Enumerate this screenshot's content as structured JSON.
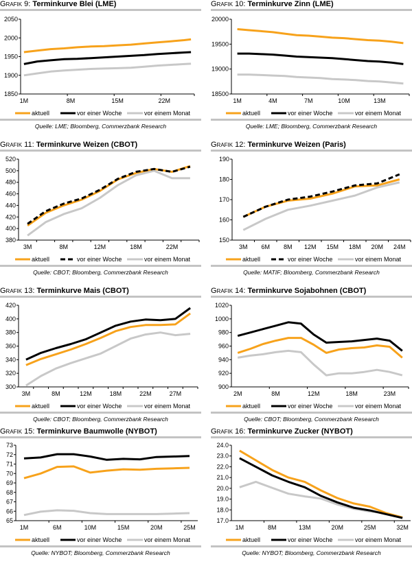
{
  "legend": [
    "aktuell",
    "vor einer Woche",
    "vor einem Monat"
  ],
  "colors": {
    "aktuell": "#f7a21b",
    "woche": "#000000",
    "monat": "#c8c8c8",
    "rule": "#c3c3c3"
  },
  "chart_data": [
    {
      "type": "line",
      "prefix": "Grafik 9:",
      "title": "Terminkurve Blei (LME)",
      "source": "Quelle: LME; Bloomberg, Commerzbank Research",
      "xlim": [
        0.5,
        26.5
      ],
      "x": [
        1,
        3,
        5,
        7,
        9,
        11,
        13,
        15,
        17,
        19,
        21,
        23,
        25,
        26
      ],
      "xticks": [
        {
          "at": 1,
          "label": "1M"
        },
        {
          "at": 8,
          "label": "8M"
        },
        {
          "at": 15,
          "label": "15M"
        },
        {
          "at": 22,
          "label": "22M"
        }
      ],
      "xtick_marks": [
        7.5,
        14.5,
        21.5,
        26.5
      ],
      "ylim": [
        1850,
        2050
      ],
      "yticks": [
        "1850",
        "1900",
        "1950",
        "2000",
        "2050"
      ],
      "series": [
        {
          "name": "aktuell",
          "style": "solid",
          "values": [
            1962,
            1966,
            1970,
            1972,
            1975,
            1977,
            1978,
            1980,
            1982,
            1985,
            1988,
            1991,
            1994,
            1996
          ]
        },
        {
          "name": "vor einer Woche",
          "style": "solid",
          "values": [
            1930,
            1937,
            1940,
            1943,
            1944,
            1946,
            1948,
            1950,
            1952,
            1954,
            1957,
            1959,
            1961,
            1962
          ]
        },
        {
          "name": "vor einem Monat",
          "style": "solid",
          "values": [
            1900,
            1905,
            1910,
            1913,
            1915,
            1917,
            1918,
            1919,
            1920,
            1923,
            1926,
            1928,
            1930,
            1931
          ]
        }
      ]
    },
    {
      "type": "line",
      "prefix": "Grafik 10:",
      "title": "Terminkurve Zinn (LME)",
      "source": "Quelle: LME; Bloomberg, Commerzbank Research",
      "xlim": [
        0.5,
        15.5
      ],
      "x": [
        1,
        2,
        3,
        4,
        5,
        6,
        7,
        8,
        9,
        10,
        11,
        12,
        13,
        14,
        15
      ],
      "xticks": [
        {
          "at": 1,
          "label": "1M"
        },
        {
          "at": 4,
          "label": "4M"
        },
        {
          "at": 7,
          "label": "7M"
        },
        {
          "at": 10,
          "label": "10M"
        },
        {
          "at": 13,
          "label": "13M"
        }
      ],
      "xtick_marks": [
        3.5,
        6.5,
        9.5,
        12.5,
        15.5
      ],
      "ylim": [
        18500,
        20000
      ],
      "yticks": [
        "18500",
        "19000",
        "19500",
        "20000"
      ],
      "series": [
        {
          "name": "aktuell",
          "style": "solid",
          "values": [
            19800,
            19780,
            19760,
            19740,
            19710,
            19680,
            19670,
            19650,
            19630,
            19620,
            19600,
            19580,
            19570,
            19550,
            19520
          ]
        },
        {
          "name": "vor einer Woche",
          "style": "solid",
          "values": [
            19310,
            19310,
            19300,
            19290,
            19270,
            19250,
            19240,
            19230,
            19220,
            19200,
            19180,
            19160,
            19150,
            19130,
            19100
          ]
        },
        {
          "name": "vor einem Monat",
          "style": "solid",
          "values": [
            18890,
            18890,
            18880,
            18870,
            18860,
            18840,
            18830,
            18820,
            18800,
            18790,
            18780,
            18760,
            18750,
            18730,
            18710
          ]
        }
      ]
    },
    {
      "type": "line",
      "prefix": "Grafik 11:",
      "title": "Terminkurve Weizen (CBOT)",
      "source": "Quelle: CBOT; Bloomberg, Commerzbank Research",
      "xlim": [
        -0.5,
        9.5
      ],
      "x": [
        0,
        1,
        2,
        3,
        4,
        5,
        6,
        7,
        8,
        9
      ],
      "xticks": [
        {
          "at": 0,
          "label": "3M"
        },
        {
          "at": 2,
          "label": "8M"
        },
        {
          "at": 4,
          "label": "12M"
        },
        {
          "at": 6,
          "label": "18M"
        },
        {
          "at": 8,
          "label": "22M"
        }
      ],
      "xtick_marks": [
        0.5,
        1.5,
        2.5,
        3.5,
        4.5,
        5.5,
        6.5,
        7.5,
        8.5,
        9.5
      ],
      "ylim": [
        380,
        520
      ],
      "yticks": [
        "380",
        "400",
        "420",
        "440",
        "460",
        "480",
        "500",
        "520"
      ],
      "series": [
        {
          "name": "aktuell",
          "style": "solid",
          "values": [
            405,
            427,
            440,
            450,
            465,
            485,
            496,
            503,
            498,
            508
          ]
        },
        {
          "name": "vor einer Woche",
          "style": "dashed",
          "values": [
            408,
            430,
            443,
            452,
            467,
            486,
            498,
            503,
            498,
            507
          ]
        },
        {
          "name": "vor einem Monat",
          "style": "solid",
          "values": [
            388,
            411,
            425,
            435,
            453,
            475,
            492,
            500,
            487,
            487
          ]
        }
      ]
    },
    {
      "type": "line",
      "prefix": "Grafik 12:",
      "title": "Terminkurve Weizen (Paris)",
      "source": "Quelle: MATIF; Bloomberg, Commerzbank Research",
      "xlim": [
        -0.5,
        7.5
      ],
      "x": [
        0,
        1,
        2,
        3,
        4,
        5,
        6,
        7
      ],
      "xticks": [
        {
          "at": 0,
          "label": "3M"
        },
        {
          "at": 1,
          "label": "6M"
        },
        {
          "at": 2,
          "label": "8M"
        },
        {
          "at": 3,
          "label": "12M"
        },
        {
          "at": 4,
          "label": "15M"
        },
        {
          "at": 5,
          "label": "18M"
        },
        {
          "at": 6,
          "label": "20M"
        },
        {
          "at": 7,
          "label": "24M"
        }
      ],
      "xtick_marks": [
        0.5,
        1.5,
        2.5,
        3.5,
        4.5,
        5.5,
        6.5,
        7.5
      ],
      "ylim": [
        150,
        190
      ],
      "yticks": [
        "150",
        "160",
        "170",
        "180",
        "190"
      ],
      "series": [
        {
          "name": "aktuell",
          "style": "solid",
          "values": [
            161.5,
            166.5,
            169.5,
            170.5,
            173,
            176.5,
            177,
            180
          ]
        },
        {
          "name": "vor einer Woche",
          "style": "dashed",
          "values": [
            161.5,
            166.5,
            170,
            171.5,
            174,
            177,
            178,
            182.5
          ]
        },
        {
          "name": "vor einem Monat",
          "style": "solid",
          "values": [
            155,
            160.5,
            165,
            167,
            169.5,
            172,
            176,
            178.5
          ]
        }
      ]
    },
    {
      "type": "line",
      "prefix": "Grafik 13:",
      "title": "Terminkurve Mais (CBOT)",
      "source": "Quelle: CBOT; Bloomberg, Commerzbank Research",
      "xlim": [
        -0.5,
        11.5
      ],
      "x": [
        0,
        1,
        2,
        3,
        4,
        5,
        6,
        7,
        8,
        9,
        10,
        11
      ],
      "xticks": [
        {
          "at": 0,
          "label": "3M"
        },
        {
          "at": 2,
          "label": "8M"
        },
        {
          "at": 4,
          "label": "12M"
        },
        {
          "at": 6,
          "label": "18M"
        },
        {
          "at": 8,
          "label": "22M"
        },
        {
          "at": 10,
          "label": "27M"
        }
      ],
      "xtick_marks": [
        0.5,
        1.5,
        2.5,
        3.5,
        4.5,
        5.5,
        6.5,
        7.5,
        8.5,
        9.5,
        10.5,
        11.5
      ],
      "ylim": [
        300,
        420
      ],
      "yticks": [
        "300",
        "320",
        "340",
        "360",
        "380",
        "400",
        "420"
      ],
      "series": [
        {
          "name": "aktuell",
          "style": "solid",
          "values": [
            332,
            341,
            348,
            355,
            363,
            372,
            382,
            388,
            391,
            391,
            392,
            408
          ]
        },
        {
          "name": "vor einer Woche",
          "style": "solid",
          "values": [
            340,
            350,
            357,
            363,
            370,
            380,
            390,
            396,
            399,
            398,
            400,
            416
          ]
        },
        {
          "name": "vor einem Monat",
          "style": "solid",
          "values": [
            302,
            316,
            327,
            335,
            342,
            349,
            360,
            371,
            377,
            380,
            376,
            378
          ]
        }
      ]
    },
    {
      "type": "line",
      "prefix": "Grafik 14:",
      "title": "Terminkurve Sojabohnen (CBOT)",
      "source": "Quelle: CBOT; Bloomberg, Commerzbank Research",
      "xlim": [
        -0.5,
        13.5
      ],
      "x": [
        0,
        1,
        2,
        3,
        4,
        5,
        6,
        7,
        8,
        9,
        10,
        11,
        12,
        13
      ],
      "xticks": [
        {
          "at": 0,
          "label": "2M"
        },
        {
          "at": 3,
          "label": "8M"
        },
        {
          "at": 6,
          "label": "12M"
        },
        {
          "at": 9,
          "label": "18M"
        },
        {
          "at": 12,
          "label": "23M"
        }
      ],
      "xtick_marks": [
        2.5,
        5.5,
        8.5,
        11.5,
        13.5
      ],
      "ylim": [
        900,
        1020
      ],
      "yticks": [
        "900",
        "920",
        "940",
        "960",
        "980",
        "1000",
        "1020"
      ],
      "series": [
        {
          "name": "aktuell",
          "style": "solid",
          "values": [
            950,
            956,
            963,
            968,
            972,
            972,
            962,
            950,
            955,
            957,
            958,
            961,
            959,
            943
          ]
        },
        {
          "name": "vor einer Woche",
          "style": "solid",
          "values": [
            975,
            980,
            985,
            990,
            995,
            993,
            977,
            965,
            966,
            967,
            969,
            971,
            968,
            953
          ]
        },
        {
          "name": "vor einem Monat",
          "style": "solid",
          "values": [
            943,
            946,
            948,
            951,
            953,
            951,
            933,
            917,
            920,
            920,
            922,
            925,
            922,
            917
          ]
        }
      ]
    },
    {
      "type": "line",
      "prefix": "Grafik 15:",
      "title": "Terminkurve Baumwolle (NYBOT)",
      "source": "Quelle: NYBOT; Bloomberg, Commerzbank Research",
      "xlim": [
        -0.5,
        10.5
      ],
      "x": [
        0,
        1,
        2,
        3,
        4,
        5,
        6,
        7,
        8,
        9,
        10
      ],
      "xticks": [
        {
          "at": 0,
          "label": "1M"
        },
        {
          "at": 2,
          "label": "6M"
        },
        {
          "at": 4,
          "label": "10M"
        },
        {
          "at": 6,
          "label": "15M"
        },
        {
          "at": 8,
          "label": "20M"
        },
        {
          "at": 10,
          "label": "25M"
        }
      ],
      "xtick_marks": [
        1.5,
        3.5,
        5.5,
        7.5,
        9.5
      ],
      "ylim": [
        65,
        73
      ],
      "yticks": [
        "65",
        "66",
        "67",
        "68",
        "69",
        "70",
        "71",
        "72",
        "73"
      ],
      "series": [
        {
          "name": "aktuell",
          "style": "solid",
          "values": [
            69.5,
            70.0,
            70.7,
            70.75,
            70.1,
            70.3,
            70.45,
            70.4,
            70.5,
            70.55,
            70.6
          ]
        },
        {
          "name": "vor einer Woche",
          "style": "solid",
          "values": [
            71.6,
            71.7,
            72.05,
            72.05,
            71.8,
            71.45,
            71.55,
            71.5,
            71.75,
            71.8,
            71.85
          ]
        },
        {
          "name": "vor einem Monat",
          "style": "solid",
          "values": [
            65.6,
            65.95,
            66.1,
            66.05,
            65.8,
            65.7,
            65.7,
            65.7,
            65.7,
            65.75,
            65.8
          ]
        }
      ]
    },
    {
      "type": "line",
      "prefix": "Grafik 16:",
      "title": "Terminkurve Zucker (NYBOT)",
      "source": "Quelle: NYBOT; Bloomberg, Commerzbank Research",
      "xlim": [
        -0.5,
        10.5
      ],
      "x": [
        0,
        1,
        2,
        3,
        4,
        5,
        6,
        7,
        8,
        9,
        10
      ],
      "xticks": [
        {
          "at": 0,
          "label": "1M"
        },
        {
          "at": 2,
          "label": "8M"
        },
        {
          "at": 4,
          "label": "13M"
        },
        {
          "at": 6,
          "label": "20M"
        },
        {
          "at": 8,
          "label": "25M"
        },
        {
          "at": 10,
          "label": "32M"
        }
      ],
      "xtick_marks": [
        1.5,
        3.5,
        5.5,
        7.5,
        9.5
      ],
      "ylim": [
        17,
        24
      ],
      "yticks": [
        "17.0",
        "18.0",
        "19.0",
        "20.0",
        "21.0",
        "22.0",
        "23.0",
        "24.0"
      ],
      "series": [
        {
          "name": "aktuell",
          "style": "solid",
          "values": [
            23.5,
            22.6,
            21.7,
            21.0,
            20.6,
            19.8,
            19.1,
            18.6,
            18.3,
            17.7,
            17.3
          ]
        },
        {
          "name": "vor einer Woche",
          "style": "solid",
          "values": [
            22.8,
            22.0,
            21.2,
            20.6,
            20.1,
            19.3,
            18.7,
            18.2,
            17.95,
            17.6,
            17.25
          ]
        },
        {
          "name": "vor einem Monat",
          "style": "solid",
          "values": [
            20.1,
            20.6,
            20.05,
            19.5,
            19.25,
            19.05,
            18.5,
            18.1,
            17.85,
            17.7,
            17.25
          ]
        }
      ]
    }
  ]
}
